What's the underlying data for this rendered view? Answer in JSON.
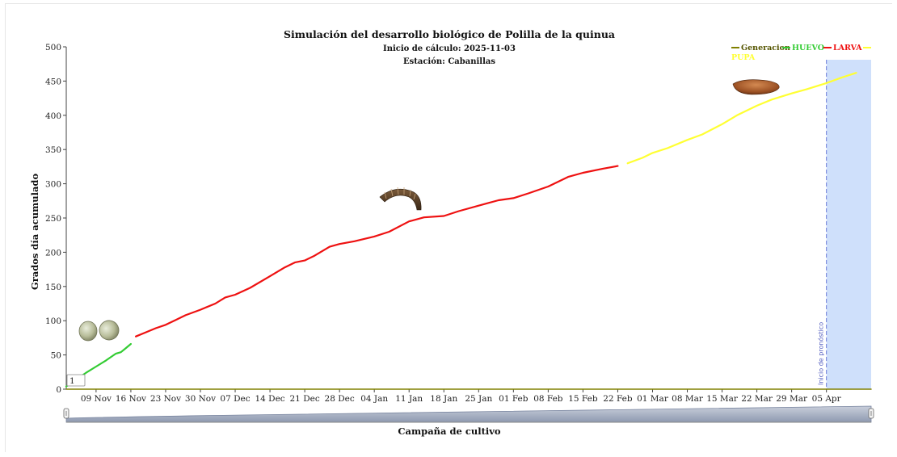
{
  "chart_data": {
    "type": "line",
    "title": "Simulación del desarrollo biológico de Polilla de la quinua",
    "subtitle_lines": [
      "Inicio de cálculo: 2025-11-03",
      "Estación: Cabanillas"
    ],
    "xlabel": "Campaña de cultivo",
    "ylabel": "Grados día acumulado",
    "x_range": [
      "2025-11-03",
      "2026-04-14"
    ],
    "ylim": [
      0,
      500
    ],
    "yticks": [
      0,
      50,
      100,
      150,
      200,
      250,
      300,
      350,
      400,
      450,
      500
    ],
    "xticks": [
      {
        "date": "2025-11-09",
        "label": "09 Nov"
      },
      {
        "date": "2025-11-16",
        "label": "16 Nov"
      },
      {
        "date": "2025-11-23",
        "label": "23 Nov"
      },
      {
        "date": "2025-11-30",
        "label": "30 Nov"
      },
      {
        "date": "2025-12-07",
        "label": "07 Dec"
      },
      {
        "date": "2025-12-14",
        "label": "14 Dec"
      },
      {
        "date": "2025-12-21",
        "label": "21 Dec"
      },
      {
        "date": "2025-12-28",
        "label": "28 Dec"
      },
      {
        "date": "2026-01-04",
        "label": "04 Jan"
      },
      {
        "date": "2026-01-11",
        "label": "11 Jan"
      },
      {
        "date": "2026-01-18",
        "label": "18 Jan"
      },
      {
        "date": "2026-01-25",
        "label": "25 Jan"
      },
      {
        "date": "2026-02-01",
        "label": "01 Feb"
      },
      {
        "date": "2026-02-08",
        "label": "08 Feb"
      },
      {
        "date": "2026-02-15",
        "label": "15 Feb"
      },
      {
        "date": "2026-02-22",
        "label": "22 Feb"
      },
      {
        "date": "2026-03-01",
        "label": "01 Mar"
      },
      {
        "date": "2026-03-08",
        "label": "08 Mar"
      },
      {
        "date": "2026-03-15",
        "label": "15 Mar"
      },
      {
        "date": "2026-03-22",
        "label": "22 Mar"
      },
      {
        "date": "2026-03-29",
        "label": "29 Mar"
      },
      {
        "date": "2026-04-05",
        "label": "05 Apr"
      }
    ],
    "grid": false,
    "legend_position": "top-right",
    "series": [
      {
        "name": "Generacion",
        "color": "#808000",
        "points": [
          [
            "2025-11-03",
            0
          ],
          [
            "2026-04-14",
            0
          ]
        ]
      },
      {
        "name": "HUEVO",
        "color": "#33cc33",
        "points": [
          [
            "2025-11-03",
            4
          ],
          [
            "2025-11-05",
            14
          ],
          [
            "2025-11-07",
            24
          ],
          [
            "2025-11-09",
            33
          ],
          [
            "2025-11-11",
            42
          ],
          [
            "2025-11-13",
            52
          ],
          [
            "2025-11-14",
            54
          ],
          [
            "2025-11-15",
            60
          ],
          [
            "2025-11-16",
            66
          ]
        ]
      },
      {
        "name": "LARVA",
        "color": "#ee1111",
        "points": [
          [
            "2025-11-17",
            77
          ],
          [
            "2025-11-19",
            83
          ],
          [
            "2025-11-21",
            89
          ],
          [
            "2025-11-23",
            94
          ],
          [
            "2025-11-25",
            101
          ],
          [
            "2025-11-27",
            108
          ],
          [
            "2025-11-30",
            116
          ],
          [
            "2025-12-03",
            125
          ],
          [
            "2025-12-05",
            134
          ],
          [
            "2025-12-07",
            138
          ],
          [
            "2025-12-10",
            148
          ],
          [
            "2025-12-14",
            165
          ],
          [
            "2025-12-17",
            178
          ],
          [
            "2025-12-19",
            185
          ],
          [
            "2025-12-21",
            188
          ],
          [
            "2025-12-23",
            195
          ],
          [
            "2025-12-26",
            208
          ],
          [
            "2025-12-28",
            212
          ],
          [
            "2025-12-31",
            216
          ],
          [
            "2026-01-04",
            223
          ],
          [
            "2026-01-07",
            230
          ],
          [
            "2026-01-11",
            245
          ],
          [
            "2026-01-14",
            251
          ],
          [
            "2026-01-18",
            253
          ],
          [
            "2026-01-21",
            260
          ],
          [
            "2026-01-25",
            268
          ],
          [
            "2026-01-27",
            272
          ],
          [
            "2026-01-29",
            276
          ],
          [
            "2026-02-01",
            279
          ],
          [
            "2026-02-04",
            286
          ],
          [
            "2026-02-08",
            296
          ],
          [
            "2026-02-12",
            310
          ],
          [
            "2026-02-15",
            316
          ],
          [
            "2026-02-19",
            322
          ],
          [
            "2026-02-22",
            326
          ]
        ]
      },
      {
        "name": "PUPA",
        "color": "#ffff33",
        "points": [
          [
            "2026-02-24",
            330
          ],
          [
            "2026-02-27",
            338
          ],
          [
            "2026-03-01",
            345
          ],
          [
            "2026-03-04",
            352
          ],
          [
            "2026-03-08",
            364
          ],
          [
            "2026-03-11",
            372
          ],
          [
            "2026-03-15",
            387
          ],
          [
            "2026-03-18",
            400
          ],
          [
            "2026-03-22",
            414
          ],
          [
            "2026-03-25",
            423
          ],
          [
            "2026-03-29",
            432
          ],
          [
            "2026-04-01",
            438
          ],
          [
            "2026-04-05",
            447
          ],
          [
            "2026-04-08",
            455
          ],
          [
            "2026-04-11",
            462
          ]
        ]
      }
    ],
    "marker_label": "1",
    "forecast": {
      "label": "Inicio de pronóstico",
      "start_date": "2026-04-05",
      "color": "#cfe0fb",
      "line_color": "#6a7ad8"
    }
  }
}
